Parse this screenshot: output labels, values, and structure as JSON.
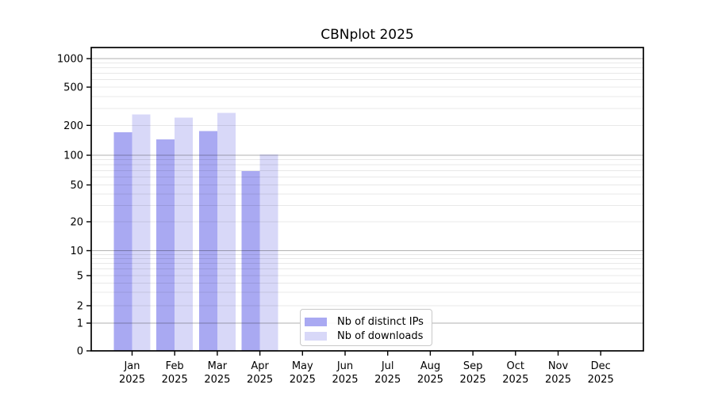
{
  "title": "CBNplot 2025",
  "chart_data": {
    "type": "bar",
    "title": "CBNplot 2025",
    "categories": [
      "Jan 2025",
      "Feb 2025",
      "Mar 2025",
      "Apr 2025",
      "May 2025",
      "Jun 2025",
      "Jul 2025",
      "Aug 2025",
      "Sep 2025",
      "Oct 2025",
      "Nov 2025",
      "Dec 2025"
    ],
    "x_tick_labels": [
      {
        "month": "Jan",
        "year": "2025"
      },
      {
        "month": "Feb",
        "year": "2025"
      },
      {
        "month": "Mar",
        "year": "2025"
      },
      {
        "month": "Apr",
        "year": "2025"
      },
      {
        "month": "May",
        "year": "2025"
      },
      {
        "month": "Jun",
        "year": "2025"
      },
      {
        "month": "Jul",
        "year": "2025"
      },
      {
        "month": "Aug",
        "year": "2025"
      },
      {
        "month": "Sep",
        "year": "2025"
      },
      {
        "month": "Oct",
        "year": "2025"
      },
      {
        "month": "Nov",
        "year": "2025"
      },
      {
        "month": "Dec",
        "year": "2025"
      }
    ],
    "series": [
      {
        "name": "Nb of distinct IPs",
        "color": "#a9a9f2",
        "values": [
          170,
          145,
          175,
          69,
          0,
          0,
          0,
          0,
          0,
          0,
          0,
          0
        ]
      },
      {
        "name": "Nb of downloads",
        "color": "#d8d8f8",
        "values": [
          260,
          240,
          270,
          102,
          0,
          0,
          0,
          0,
          0,
          0,
          0,
          0
        ]
      }
    ],
    "yscale": "symlog",
    "ylim": [
      0,
      1300
    ],
    "y_ticks": [
      0,
      1,
      2,
      5,
      10,
      20,
      50,
      100,
      200,
      500,
      1000
    ],
    "y_major_gridlines": [
      1,
      10,
      100,
      1000
    ],
    "y_minor_gridlines": [
      2,
      3,
      4,
      5,
      6,
      7,
      8,
      9,
      20,
      30,
      40,
      50,
      60,
      70,
      80,
      90,
      200,
      300,
      400,
      500,
      600,
      700,
      800,
      900
    ],
    "grid": "horizontal major (gray) + minor (light gray)",
    "legend_position": "inside plot, lower-center-left",
    "xlabel": "",
    "ylabel": ""
  },
  "legend": {
    "items": [
      {
        "label": "Nb of distinct IPs",
        "color": "#a9a9f2"
      },
      {
        "label": "Nb of downloads",
        "color": "#d8d8f8"
      }
    ]
  }
}
